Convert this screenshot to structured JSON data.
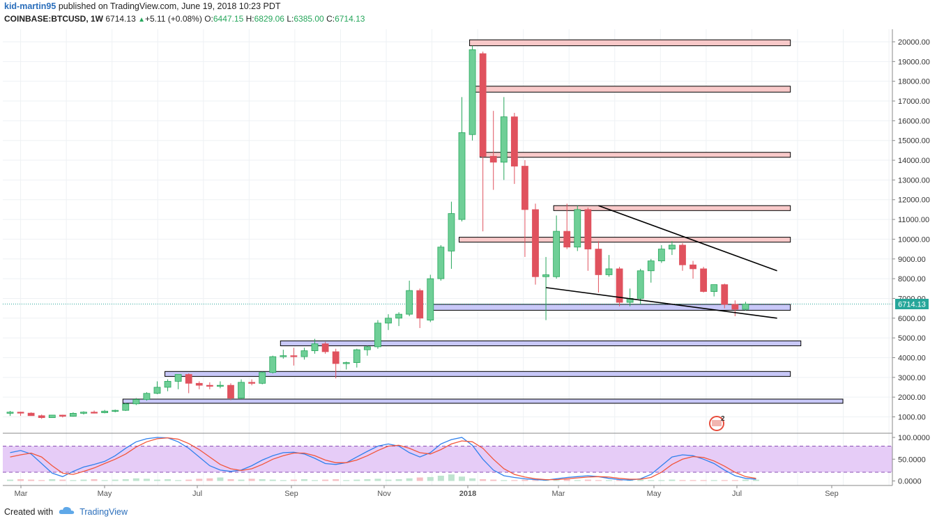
{
  "header": {
    "author": "kid-martin95",
    "published_text": "published on TradingView.com, June 19, 2018 10:23 PDT",
    "symbol": "COINBASE:BTCUSD, 1W",
    "last": "6714.13",
    "change": "+5.11 (+0.08%)",
    "o_label": "O:",
    "o_value": "6447.15",
    "h_label": "H:",
    "h_value": "6829.06",
    "l_label": "L:",
    "l_value": "6385.00",
    "c_label": "C:",
    "c_value": "6714.13"
  },
  "price_tag": "6714.13",
  "events_badge": "2",
  "footer": {
    "created_with": "Created with",
    "brand": "TradingView"
  },
  "colors": {
    "up": "#26a65b",
    "up_fill": "#6fcf97",
    "down": "#e0525e",
    "resistance_fill": "#f8c9c9",
    "support_fill": "#c8c8f8",
    "stoch_band": "#e6ccf7",
    "stoch_k": "#2f80ed",
    "stoch_d": "#f2553a",
    "last_line": "#26a69a"
  },
  "chart_data": [
    {
      "type": "candlestick",
      "title": "",
      "y_axis_ticks": [
        "1000.00",
        "2000.00",
        "3000.00",
        "4000.00",
        "5000.00",
        "6000.00",
        "7000.00",
        "8000.00",
        "9000.00",
        "10000.00",
        "11000.00",
        "12000.00",
        "13000.00",
        "14000.00",
        "15000.00",
        "16000.00",
        "17000.00",
        "18000.00",
        "19000.00",
        "20000.00"
      ],
      "ylim": [
        0,
        21500
      ],
      "x_axis_labels": [
        "Mar",
        "May",
        "Jul",
        "Sep",
        "Nov",
        "2018",
        "Mar",
        "May",
        "Jul",
        "Sep"
      ],
      "candles": [
        {
          "o": 1180,
          "h": 1300,
          "l": 1050,
          "c": 1240
        },
        {
          "o": 1240,
          "h": 1260,
          "l": 1050,
          "c": 1190
        },
        {
          "o": 1190,
          "h": 1230,
          "l": 1100,
          "c": 1060
        },
        {
          "o": 1060,
          "h": 1120,
          "l": 900,
          "c": 960
        },
        {
          "o": 960,
          "h": 1100,
          "l": 950,
          "c": 1090
        },
        {
          "o": 1090,
          "h": 1110,
          "l": 970,
          "c": 1030
        },
        {
          "o": 1030,
          "h": 1230,
          "l": 1010,
          "c": 1180
        },
        {
          "o": 1180,
          "h": 1280,
          "l": 1120,
          "c": 1240
        },
        {
          "o": 1240,
          "h": 1320,
          "l": 1170,
          "c": 1210
        },
        {
          "o": 1210,
          "h": 1350,
          "l": 1180,
          "c": 1290
        },
        {
          "o": 1290,
          "h": 1370,
          "l": 1230,
          "c": 1330
        },
        {
          "o": 1330,
          "h": 1700,
          "l": 1300,
          "c": 1660
        },
        {
          "o": 1660,
          "h": 1950,
          "l": 1600,
          "c": 1880
        },
        {
          "o": 1880,
          "h": 2250,
          "l": 1820,
          "c": 2190
        },
        {
          "o": 2190,
          "h": 2800,
          "l": 2150,
          "c": 2500
        },
        {
          "o": 2500,
          "h": 2900,
          "l": 2300,
          "c": 2800
        },
        {
          "o": 2800,
          "h": 3000,
          "l": 2400,
          "c": 3150
        },
        {
          "o": 3150,
          "h": 3200,
          "l": 2200,
          "c": 2700
        },
        {
          "o": 2700,
          "h": 2800,
          "l": 2400,
          "c": 2600
        },
        {
          "o": 2600,
          "h": 2750,
          "l": 2400,
          "c": 2550
        },
        {
          "o": 2550,
          "h": 2800,
          "l": 2450,
          "c": 2600
        },
        {
          "o": 2600,
          "h": 2700,
          "l": 1850,
          "c": 1950
        },
        {
          "o": 1950,
          "h": 2900,
          "l": 1900,
          "c": 2750
        },
        {
          "o": 2750,
          "h": 2900,
          "l": 2600,
          "c": 2700
        },
        {
          "o": 2700,
          "h": 3300,
          "l": 2650,
          "c": 3250
        },
        {
          "o": 3250,
          "h": 4100,
          "l": 3200,
          "c": 4050
        },
        {
          "o": 4050,
          "h": 4400,
          "l": 3950,
          "c": 4100
        },
        {
          "o": 4100,
          "h": 4500,
          "l": 3600,
          "c": 4050
        },
        {
          "o": 4050,
          "h": 4500,
          "l": 3900,
          "c": 4350
        },
        {
          "o": 4350,
          "h": 4950,
          "l": 4200,
          "c": 4700
        },
        {
          "o": 4700,
          "h": 4800,
          "l": 4200,
          "c": 4300
        },
        {
          "o": 4300,
          "h": 4450,
          "l": 2950,
          "c": 3700
        },
        {
          "o": 3700,
          "h": 3800,
          "l": 3400,
          "c": 3750
        },
        {
          "o": 3750,
          "h": 4450,
          "l": 3500,
          "c": 4400
        },
        {
          "o": 4400,
          "h": 4600,
          "l": 4100,
          "c": 4550
        },
        {
          "o": 4550,
          "h": 5900,
          "l": 4450,
          "c": 5750
        },
        {
          "o": 5750,
          "h": 6200,
          "l": 5400,
          "c": 6000
        },
        {
          "o": 6000,
          "h": 6300,
          "l": 5600,
          "c": 6200
        },
        {
          "o": 6200,
          "h": 7900,
          "l": 6100,
          "c": 7400
        },
        {
          "o": 7400,
          "h": 7500,
          "l": 5500,
          "c": 6000
        },
        {
          "o": 5900,
          "h": 8200,
          "l": 5800,
          "c": 8000
        },
        {
          "o": 8000,
          "h": 9700,
          "l": 7900,
          "c": 9600
        },
        {
          "o": 9400,
          "h": 11900,
          "l": 8500,
          "c": 11300
        },
        {
          "o": 11000,
          "h": 17200,
          "l": 10900,
          "c": 15400
        },
        {
          "o": 15300,
          "h": 19800,
          "l": 15000,
          "c": 19600
        },
        {
          "o": 19400,
          "h": 19500,
          "l": 10400,
          "c": 14200
        },
        {
          "o": 14200,
          "h": 16500,
          "l": 12500,
          "c": 13900
        },
        {
          "o": 13900,
          "h": 17200,
          "l": 13000,
          "c": 16200
        },
        {
          "o": 16200,
          "h": 16400,
          "l": 12800,
          "c": 13700
        },
        {
          "o": 13700,
          "h": 14000,
          "l": 9100,
          "c": 11500
        },
        {
          "o": 11500,
          "h": 11800,
          "l": 7700,
          "c": 8100
        },
        {
          "o": 8100,
          "h": 9100,
          "l": 5900,
          "c": 8200
        },
        {
          "o": 8100,
          "h": 11200,
          "l": 8000,
          "c": 10400
        },
        {
          "o": 10400,
          "h": 11800,
          "l": 9500,
          "c": 9600
        },
        {
          "o": 9600,
          "h": 11700,
          "l": 9400,
          "c": 11500
        },
        {
          "o": 11500,
          "h": 11600,
          "l": 8400,
          "c": 9500
        },
        {
          "o": 9500,
          "h": 9900,
          "l": 7300,
          "c": 8200
        },
        {
          "o": 8200,
          "h": 9200,
          "l": 8100,
          "c": 8500
        },
        {
          "o": 8500,
          "h": 8600,
          "l": 6600,
          "c": 6800
        },
        {
          "o": 6800,
          "h": 7500,
          "l": 6600,
          "c": 7000
        },
        {
          "o": 7000,
          "h": 8500,
          "l": 6700,
          "c": 8400
        },
        {
          "o": 8400,
          "h": 9000,
          "l": 7800,
          "c": 8900
        },
        {
          "o": 8900,
          "h": 9700,
          "l": 8800,
          "c": 9500
        },
        {
          "o": 9500,
          "h": 9900,
          "l": 9200,
          "c": 9700
        },
        {
          "o": 9700,
          "h": 9800,
          "l": 8400,
          "c": 8700
        },
        {
          "o": 8700,
          "h": 8900,
          "l": 8000,
          "c": 8500
        },
        {
          "o": 8500,
          "h": 8600,
          "l": 7300,
          "c": 7350
        },
        {
          "o": 7350,
          "h": 7700,
          "l": 7100,
          "c": 7700
        },
        {
          "o": 7700,
          "h": 7750,
          "l": 6500,
          "c": 6700
        },
        {
          "o": 6700,
          "h": 6900,
          "l": 6100,
          "c": 6450
        },
        {
          "o": 6447.15,
          "h": 6829.06,
          "l": 6385,
          "c": 6714.13
        }
      ],
      "resistance_zones": [
        {
          "from_week": 44,
          "to_week": 74,
          "low": 19800,
          "high": 20100
        },
        {
          "from_week": 44,
          "to_week": 74,
          "low": 17450,
          "high": 17750
        },
        {
          "from_week": 45,
          "to_week": 74,
          "low": 14150,
          "high": 14400
        },
        {
          "from_week": 52,
          "to_week": 74,
          "low": 11450,
          "high": 11700
        },
        {
          "from_week": 43,
          "to_week": 74,
          "low": 9850,
          "high": 10100
        }
      ],
      "support_zones": [
        {
          "from_week": 40,
          "to_week": 74,
          "low": 6400,
          "high": 6700
        },
        {
          "from_week": 26,
          "to_week": 75,
          "low": 4600,
          "high": 4850
        },
        {
          "from_week": 15,
          "to_week": 74,
          "low": 3050,
          "high": 3300
        },
        {
          "from_week": 11,
          "to_week": 79,
          "low": 1750,
          "high": 1900
        }
      ],
      "trend_lines": [
        {
          "from": {
            "week": 56,
            "price": 11700
          },
          "to": {
            "week": 73,
            "price": 8400
          }
        },
        {
          "from": {
            "week": 51,
            "price": 7550
          },
          "to": {
            "week": 73,
            "price": 6000
          }
        }
      ],
      "last_price_line": 6714.13
    },
    {
      "type": "line",
      "title": "",
      "y_axis_ticks": [
        "100.0000",
        "50.0000",
        "0.0000"
      ],
      "ylim": [
        -5,
        105
      ],
      "band": [
        20,
        80
      ],
      "series": [
        {
          "values": [
            65,
            70,
            62,
            40,
            18,
            10,
            22,
            32,
            38,
            45,
            58,
            75,
            90,
            97,
            100,
            99,
            90,
            75,
            55,
            35,
            25,
            22,
            25,
            35,
            48,
            58,
            65,
            66,
            62,
            52,
            40,
            38,
            42,
            55,
            68,
            80,
            85,
            80,
            65,
            55,
            65,
            85,
            95,
            100,
            82,
            50,
            25,
            12,
            8,
            5,
            3,
            2,
            5,
            8,
            10,
            12,
            10,
            6,
            3,
            2,
            5,
            15,
            35,
            55,
            60,
            58,
            50,
            40,
            25,
            12,
            6,
            4
          ]
        },
        {
          "values": [
            55,
            60,
            64,
            55,
            35,
            18,
            15,
            22,
            30,
            40,
            50,
            62,
            78,
            90,
            97,
            99,
            96,
            86,
            72,
            55,
            38,
            28,
            24,
            28,
            38,
            50,
            58,
            64,
            64,
            58,
            48,
            42,
            42,
            48,
            58,
            70,
            80,
            82,
            75,
            65,
            62,
            72,
            85,
            92,
            90,
            75,
            50,
            28,
            15,
            9,
            5,
            3,
            3,
            5,
            7,
            9,
            10,
            9,
            6,
            4,
            4,
            8,
            20,
            38,
            50,
            56,
            54,
            46,
            34,
            20,
            10,
            6
          ]
        },
        {
          "values": [
            3,
            4,
            3,
            2,
            4,
            3,
            2,
            3,
            4,
            2,
            3,
            4,
            6,
            5,
            3,
            4,
            2,
            3,
            5,
            6,
            8,
            4,
            3,
            5,
            4,
            3,
            2,
            3,
            4,
            2,
            3,
            4,
            2,
            3,
            4,
            5,
            3,
            4,
            6,
            8,
            9,
            12,
            15,
            10,
            6,
            4,
            3,
            2,
            2,
            3,
            2,
            3,
            2,
            4,
            2,
            3,
            2,
            2,
            3,
            2,
            3,
            2,
            2,
            3,
            2,
            2,
            2,
            2,
            2,
            2,
            3,
            3
          ]
        }
      ]
    }
  ]
}
